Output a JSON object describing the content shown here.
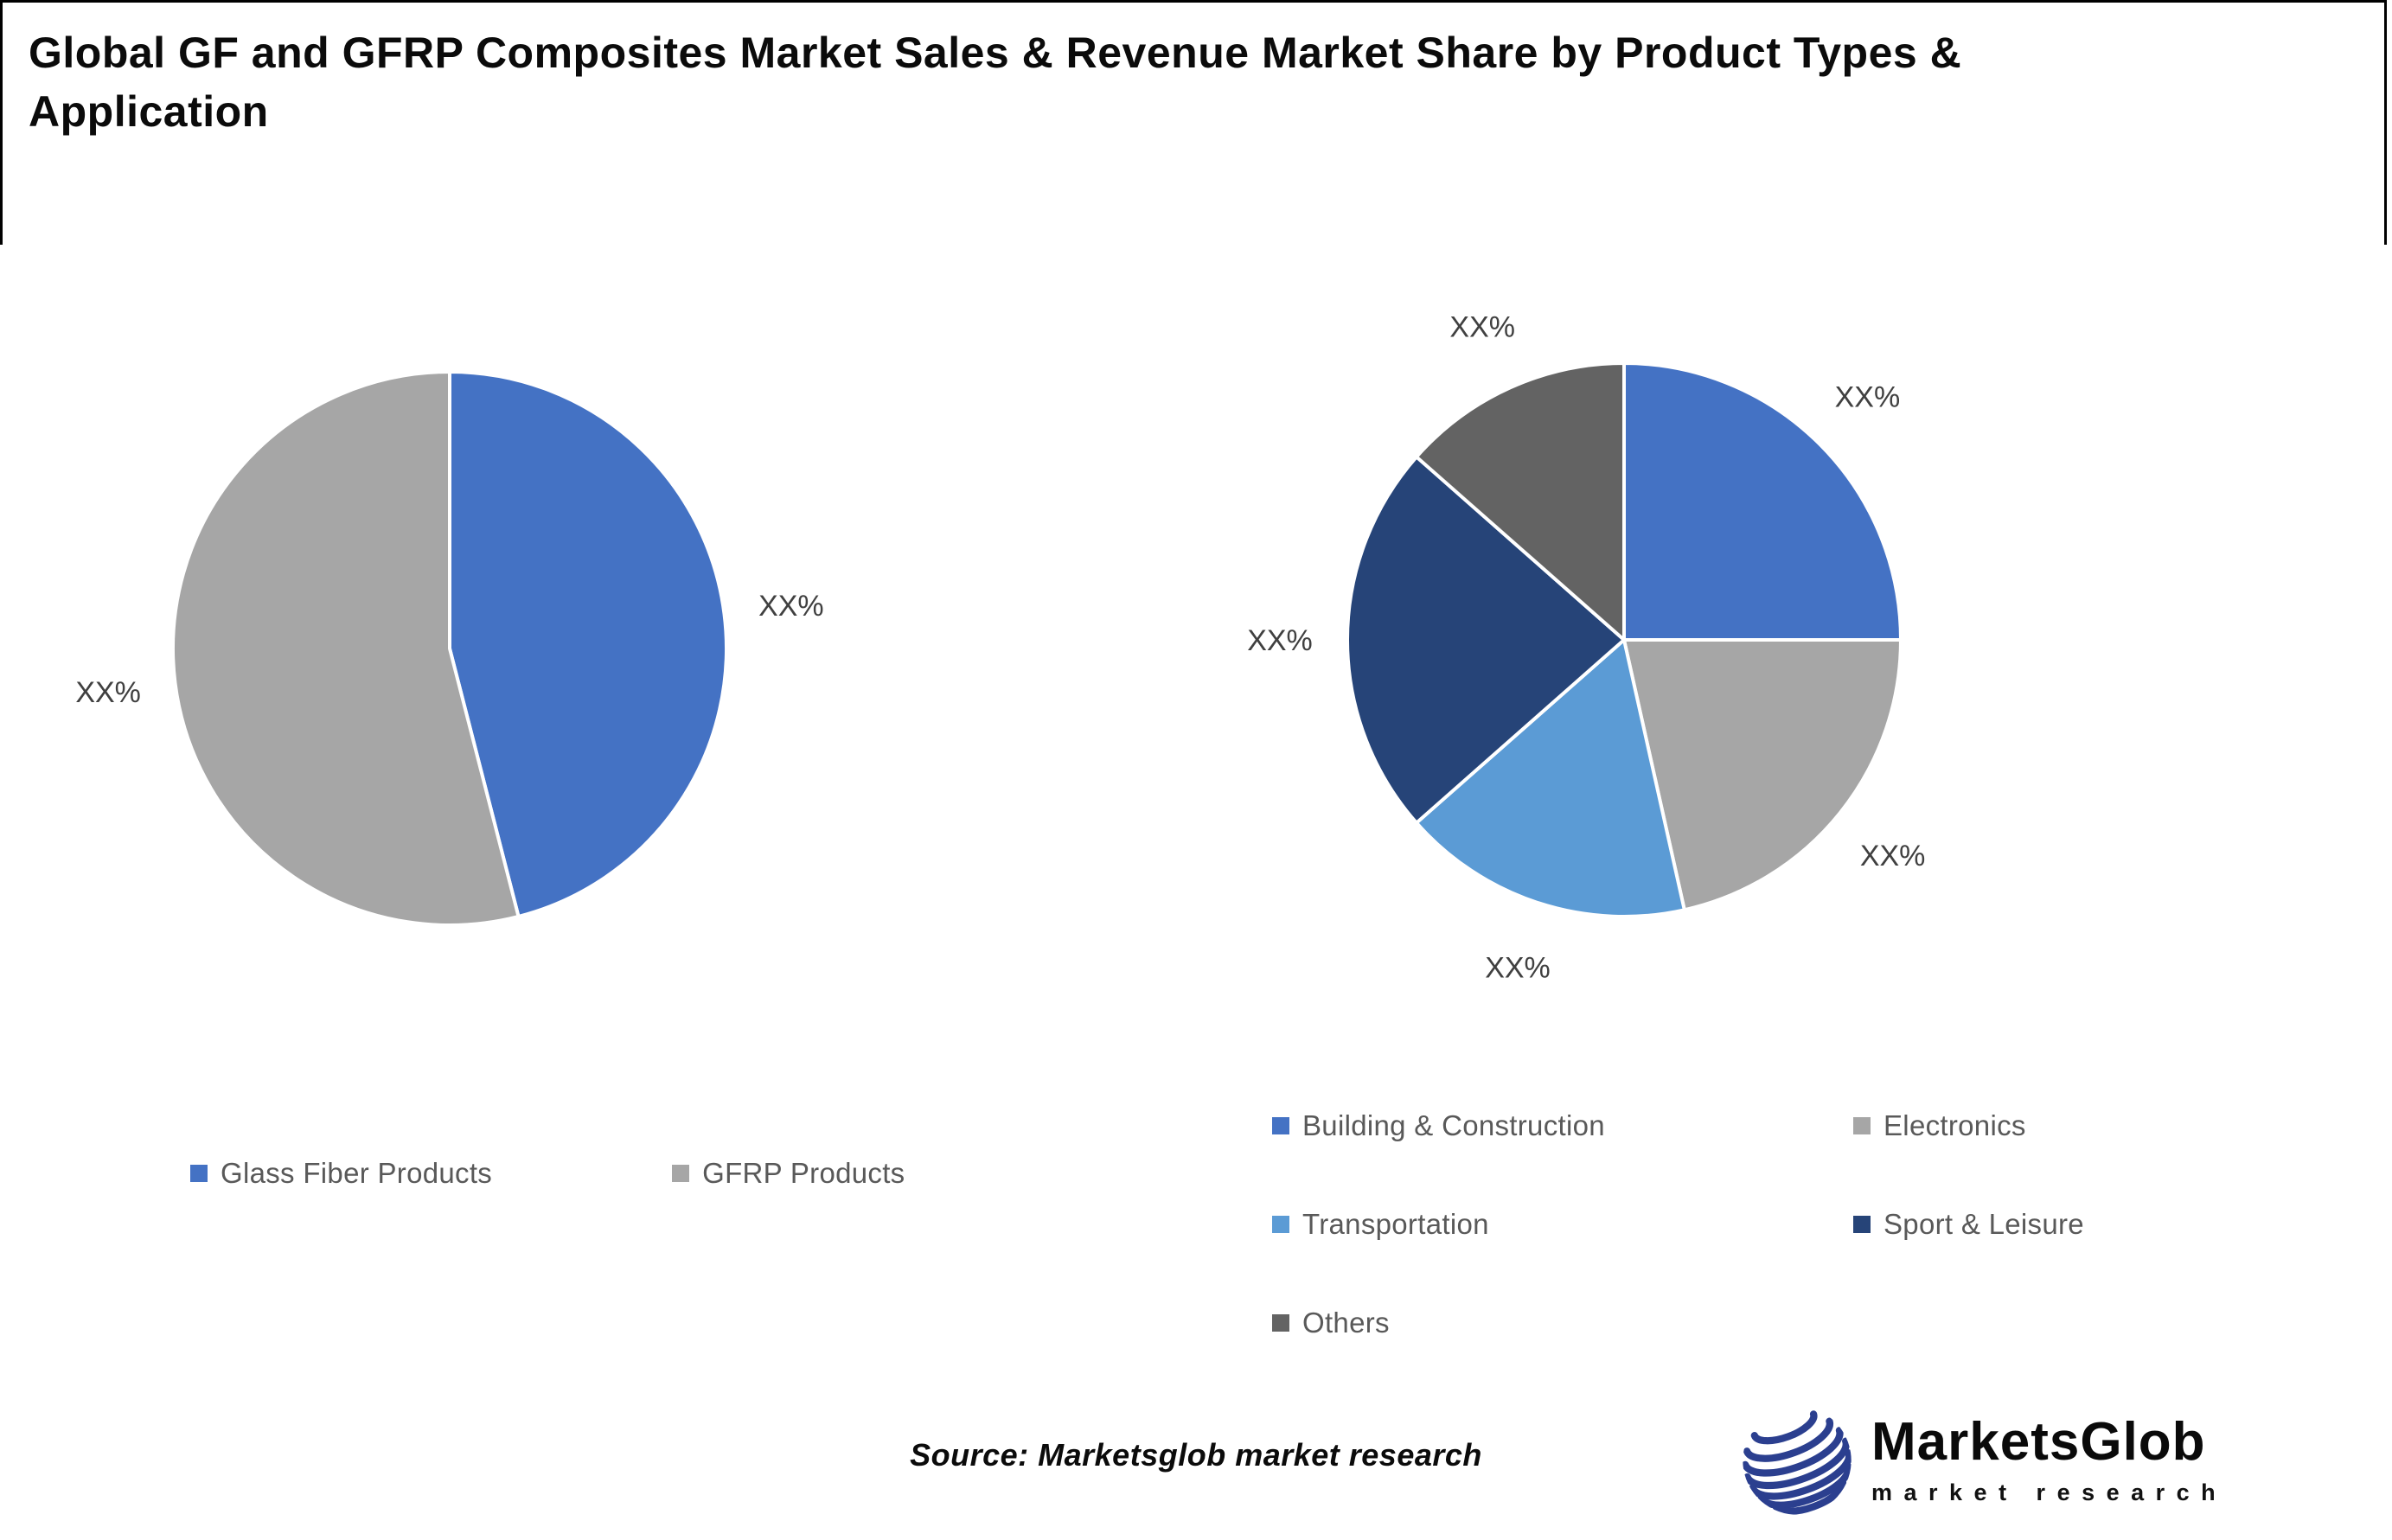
{
  "title": "Global GF and GFRP Composites Market Sales & Revenue Market Share by Product Types & Application",
  "source": "Source: Marketsglob market research",
  "logo": {
    "name": "MarketsGlob",
    "tagline": "market research",
    "globe_color": "#2b3f8f"
  },
  "label_text_color": "#404040",
  "legend_text_color": "#595959",
  "chart_data": [
    {
      "type": "pie",
      "name": "sales-revenue-share-by-product-types",
      "categories": [
        "Glass Fiber Products",
        "GFRP Products"
      ],
      "values": [
        46,
        54
      ],
      "labels": [
        "XX%",
        "XX%"
      ],
      "colors": [
        "#4472C4",
        "#A6A6A6"
      ],
      "start_angle_deg": 0,
      "direction": "clockwise",
      "legend_position": "bottom"
    },
    {
      "type": "pie",
      "name": "sales-revenue-share-by-application",
      "categories": [
        "Building & Construction",
        "Electronics",
        "Transportation",
        "Sport & Leisure",
        "Others"
      ],
      "values": [
        25,
        21.5,
        17,
        23,
        13.5
      ],
      "labels": [
        "XX%",
        "XX%",
        "XX%",
        "XX%",
        "XX%"
      ],
      "colors": [
        "#4472C4",
        "#A6A6A6",
        "#5B9BD5",
        "#264478",
        "#636363"
      ],
      "start_angle_deg": 0,
      "direction": "clockwise",
      "legend_position": "bottom"
    }
  ]
}
